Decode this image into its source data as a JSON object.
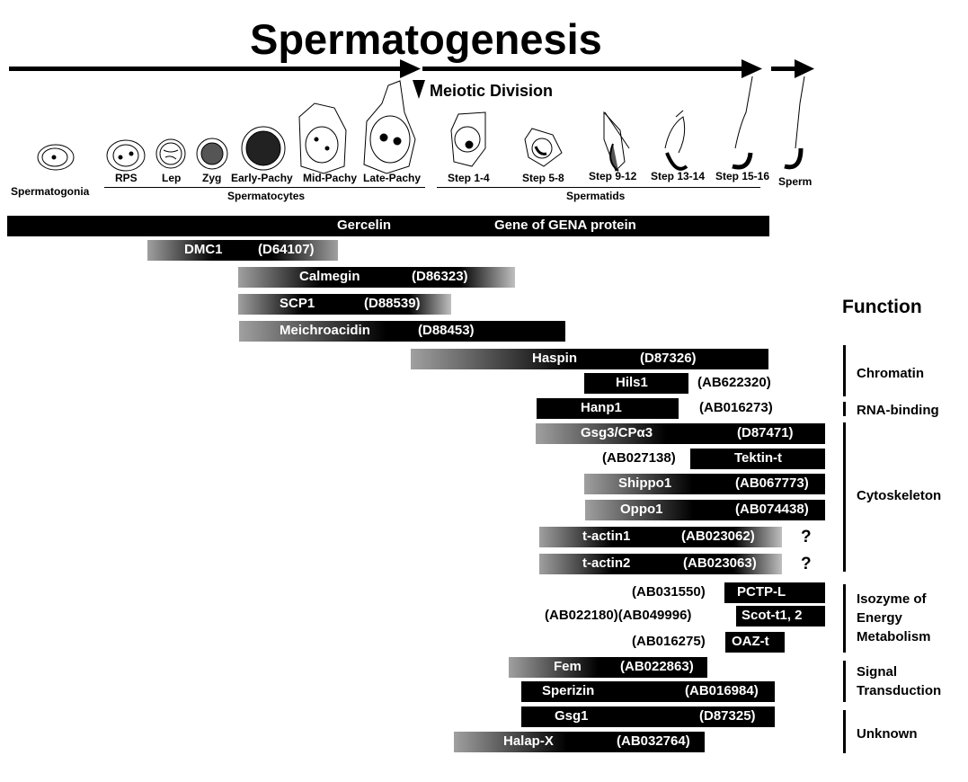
{
  "title": "Spermatogenesis",
  "meiotic_division": "Meiotic Division",
  "stages": [
    "Spermatogonia",
    "RPS",
    "Lep",
    "Zyg",
    "Early-Pachy",
    "Mid-Pachy",
    "Late-Pachy",
    "Step 1-4",
    "Step 5-8",
    "Step 9-12",
    "Step 13-14",
    "Step 15-16",
    "Sperm"
  ],
  "groups": {
    "spermatocytes": "Spermatocytes",
    "spermatids": "Spermatids"
  },
  "function_header": "Function",
  "genes": [
    {
      "name": "Gercelin",
      "accession": "Gene of GENA protein"
    },
    {
      "name": "DMC1",
      "accession": "(D64107)"
    },
    {
      "name": "Calmegin",
      "accession": "(D86323)"
    },
    {
      "name": "SCP1",
      "accession": "(D88539)"
    },
    {
      "name": "Meichroacidin",
      "accession": "(D88453)"
    },
    {
      "name": "Haspin",
      "accession": "(D87326)"
    },
    {
      "name": "Hils1",
      "accession": "(AB622320)"
    },
    {
      "name": "Hanp1",
      "accession": "(AB016273)"
    },
    {
      "name": "Gsg3/CPα3",
      "accession": "(D87471)"
    },
    {
      "name": "Tektin-t",
      "accession": "(AB027138)"
    },
    {
      "name": "Shippo1",
      "accession": "(AB067773)"
    },
    {
      "name": "Oppo1",
      "accession": "(AB074438)"
    },
    {
      "name": "t-actin1",
      "accession": "(AB023062)",
      "note": "?"
    },
    {
      "name": "t-actin2",
      "accession": "(AB023063)",
      "note": "?"
    },
    {
      "name": "PCTP-L",
      "accession": "(AB031550)"
    },
    {
      "name": "Scot-t1, 2",
      "accession": "(AB022180)(AB049996)"
    },
    {
      "name": "OAZ-t",
      "accession": "(AB016275)"
    },
    {
      "name": "Fem",
      "accession": "(AB022863)"
    },
    {
      "name": "Sperizin",
      "accession": "(AB016984)"
    },
    {
      "name": "Gsg1",
      "accession": "(D87325)"
    },
    {
      "name": "Halap-X",
      "accession": "(AB032764)"
    }
  ],
  "functions": [
    "Chromatin",
    "RNA-binding",
    "Cytoskeleton",
    "Isozyme of\nEnergy\nMetabolism",
    "Signal\nTransduction",
    "Unknown"
  ]
}
